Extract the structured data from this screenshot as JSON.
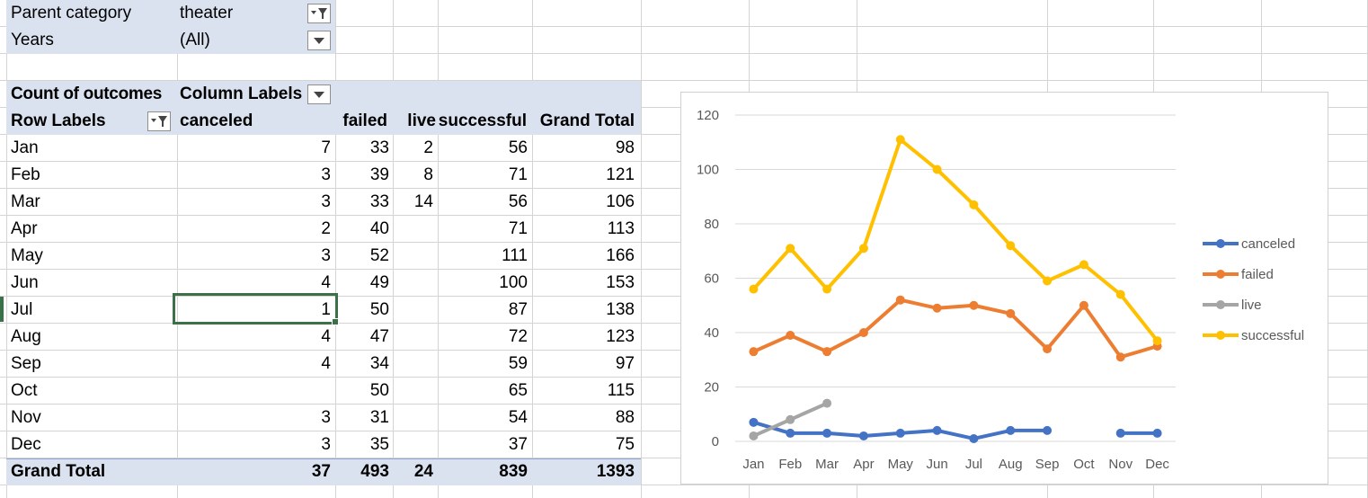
{
  "filters": [
    {
      "label": "Parent category",
      "value": "theater",
      "icon": "filter-dropdown-icon"
    },
    {
      "label": "Years",
      "value": "(All)",
      "icon": "dropdown-arrow-icon"
    }
  ],
  "pivot": {
    "measure_label": "Count of outcomes",
    "column_labels": "Column Labels",
    "row_labels": "Row Labels",
    "columns": [
      "canceled",
      "failed",
      "live",
      "successful",
      "Grand Total"
    ],
    "rows": [
      {
        "label": "Jan",
        "canceled": "7",
        "failed": "33",
        "live": "2",
        "successful": "56",
        "total": "98"
      },
      {
        "label": "Feb",
        "canceled": "3",
        "failed": "39",
        "live": "8",
        "successful": "71",
        "total": "121"
      },
      {
        "label": "Mar",
        "canceled": "3",
        "failed": "33",
        "live": "14",
        "successful": "56",
        "total": "106"
      },
      {
        "label": "Apr",
        "canceled": "2",
        "failed": "40",
        "live": "",
        "successful": "71",
        "total": "113"
      },
      {
        "label": "May",
        "canceled": "3",
        "failed": "52",
        "live": "",
        "successful": "111",
        "total": "166"
      },
      {
        "label": "Jun",
        "canceled": "4",
        "failed": "49",
        "live": "",
        "successful": "100",
        "total": "153"
      },
      {
        "label": "Jul",
        "canceled": "1",
        "failed": "50",
        "live": "",
        "successful": "87",
        "total": "138"
      },
      {
        "label": "Aug",
        "canceled": "4",
        "failed": "47",
        "live": "",
        "successful": "72",
        "total": "123"
      },
      {
        "label": "Sep",
        "canceled": "4",
        "failed": "34",
        "live": "",
        "successful": "59",
        "total": "97"
      },
      {
        "label": "Oct",
        "canceled": "",
        "failed": "50",
        "live": "",
        "successful": "65",
        "total": "115"
      },
      {
        "label": "Nov",
        "canceled": "3",
        "failed": "31",
        "live": "",
        "successful": "54",
        "total": "88"
      },
      {
        "label": "Dec",
        "canceled": "3",
        "failed": "35",
        "live": "",
        "successful": "37",
        "total": "75"
      }
    ],
    "grand_total": {
      "label": "Grand Total",
      "canceled": "37",
      "failed": "493",
      "live": "24",
      "successful": "839",
      "total": "1393"
    }
  },
  "chart_data": {
    "type": "line",
    "categories": [
      "Jan",
      "Feb",
      "Mar",
      "Apr",
      "May",
      "Jun",
      "Jul",
      "Aug",
      "Sep",
      "Oct",
      "Nov",
      "Dec"
    ],
    "ylim": [
      0,
      120
    ],
    "yticks": [
      "0",
      "20",
      "40",
      "60",
      "80",
      "100",
      "120"
    ],
    "grid": true,
    "legend_position": "right",
    "series": [
      {
        "name": "canceled",
        "color": "#4472c4",
        "values": [
          7,
          3,
          3,
          2,
          3,
          4,
          1,
          4,
          4,
          null,
          3,
          3
        ]
      },
      {
        "name": "failed",
        "color": "#ed7d31",
        "values": [
          33,
          39,
          33,
          40,
          52,
          49,
          50,
          47,
          34,
          50,
          31,
          35
        ]
      },
      {
        "name": "live",
        "color": "#a5a5a5",
        "values": [
          2,
          8,
          14,
          null,
          null,
          null,
          null,
          null,
          null,
          null,
          null,
          null
        ]
      },
      {
        "name": "successful",
        "color": "#ffc000",
        "values": [
          56,
          71,
          56,
          71,
          111,
          100,
          87,
          72,
          59,
          65,
          54,
          37
        ]
      }
    ]
  }
}
